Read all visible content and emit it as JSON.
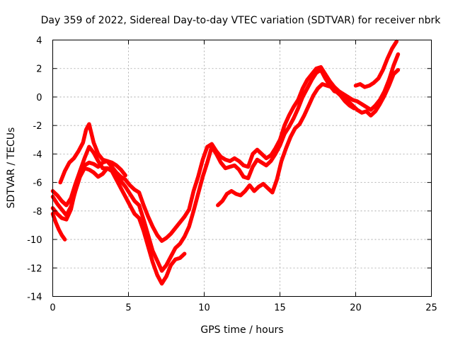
{
  "chart_data": {
    "type": "scatter",
    "title": "Day 359 of 2022, Sidereal Day-to-day VTEC variation (SDTVAR) for receiver nbrk",
    "xlabel": "GPS time / hours",
    "ylabel": "SDTVAR / TECUs",
    "xlim": [
      0,
      25
    ],
    "ylim": [
      -14,
      4
    ],
    "xticks": [
      0,
      5,
      10,
      15,
      20,
      25
    ],
    "yticks": [
      -14,
      -12,
      -10,
      -8,
      -6,
      -4,
      -2,
      0,
      2,
      4
    ],
    "grid": true,
    "legend": "none",
    "marker_color": "#ff0000",
    "series": [
      {
        "x": [
          0.0,
          0.3,
          0.6,
          0.9,
          1.2,
          1.5,
          1.8,
          2.1,
          2.4,
          2.7,
          3.0,
          3.3,
          3.6,
          3.9,
          4.2,
          4.5,
          4.8,
          5.1,
          5.4,
          5.7,
          6.0,
          6.3,
          6.6,
          6.9,
          7.2,
          7.5,
          7.8,
          8.1,
          8.4,
          8.7,
          9.0,
          9.3,
          9.6,
          9.9,
          10.2,
          10.5,
          10.8,
          11.1,
          11.4,
          11.7,
          12.0,
          12.3,
          12.6,
          12.9,
          13.2,
          13.5,
          13.8,
          14.1,
          14.4,
          14.7,
          15.0,
          15.3,
          15.6,
          15.9,
          16.2,
          16.5,
          16.8,
          17.1,
          17.4,
          17.7,
          18.0,
          18.3,
          18.6,
          18.9,
          19.2,
          19.5,
          19.8,
          20.1,
          20.4,
          20.7,
          21.0,
          21.3,
          21.6,
          21.9,
          22.2,
          22.5,
          22.8
        ],
        "y": [
          -6.6,
          -6.9,
          -7.3,
          -7.6,
          -7.1,
          -6.1,
          -5.2,
          -4.8,
          -4.6,
          -4.7,
          -4.9,
          -4.6,
          -4.5,
          -4.9,
          -5.3,
          -5.6,
          -5.8,
          -6.2,
          -6.5,
          -6.7,
          -7.6,
          -8.4,
          -9.1,
          -9.7,
          -10.1,
          -9.9,
          -9.6,
          -9.2,
          -8.8,
          -8.4,
          -7.9,
          -6.6,
          -5.6,
          -4.4,
          -3.5,
          -3.3,
          -3.8,
          -4.2,
          -4.4,
          -4.5,
          -4.3,
          -4.5,
          -4.8,
          -4.9,
          -4.0,
          -3.7,
          -4.0,
          -4.3,
          -4.1,
          -3.6,
          -3.0,
          -2.0,
          -1.3,
          -0.7,
          -0.2,
          0.6,
          1.2,
          1.6,
          2.0,
          2.1,
          1.6,
          1.1,
          0.7,
          0.4,
          0.2,
          0.0,
          -0.2,
          -0.3,
          -0.5,
          -0.7,
          -0.9,
          -0.6,
          -0.2,
          0.4,
          1.2,
          2.2,
          3.0
        ]
      },
      {
        "x": [
          0.0,
          0.3,
          0.6,
          0.9,
          1.2,
          1.5,
          1.8,
          2.1,
          2.4,
          2.7,
          3.0,
          3.3,
          3.6,
          3.9,
          4.2,
          4.5,
          4.8,
          5.1,
          5.4,
          5.7,
          6.0,
          6.3,
          6.6,
          6.9,
          7.2,
          7.5,
          7.8,
          8.1,
          8.4,
          8.7,
          9.0,
          9.3,
          9.6,
          9.9,
          10.2,
          10.5,
          10.8,
          11.1,
          11.4,
          11.7,
          12.0,
          12.3,
          12.6,
          12.9,
          13.2,
          13.5,
          13.8,
          14.1,
          14.4,
          14.7,
          15.0,
          15.3,
          15.6,
          15.9,
          16.2,
          16.5,
          16.8,
          17.1,
          17.4,
          17.7,
          18.0,
          18.3,
          18.6,
          18.9,
          19.2,
          19.5,
          19.8,
          20.1,
          20.4,
          20.7,
          21.0,
          21.3,
          21.6,
          21.9,
          22.2,
          22.5,
          22.8
        ],
        "y": [
          -7.0,
          -7.5,
          -7.9,
          -8.3,
          -7.7,
          -6.6,
          -5.6,
          -5.0,
          -5.1,
          -5.3,
          -5.6,
          -5.4,
          -5.0,
          -5.1,
          -5.5,
          -5.9,
          -6.3,
          -6.8,
          -7.3,
          -7.6,
          -8.6,
          -9.7,
          -10.8,
          -11.5,
          -12.2,
          -11.8,
          -11.2,
          -10.6,
          -10.3,
          -9.8,
          -9.1,
          -8.0,
          -6.8,
          -5.6,
          -4.6,
          -3.5,
          -4.0,
          -4.6,
          -5.0,
          -4.9,
          -4.8,
          -5.1,
          -5.6,
          -5.7,
          -4.9,
          -4.4,
          -4.6,
          -4.8,
          -4.5,
          -4.0,
          -3.4,
          -2.6,
          -2.1,
          -1.5,
          -0.8,
          0.0,
          0.6,
          1.2,
          1.7,
          1.9,
          1.3,
          0.8,
          0.4,
          0.3,
          0.1,
          -0.3,
          -0.6,
          -0.9,
          -1.1,
          -1.0,
          -1.3,
          -1.0,
          -0.5,
          0.1,
          0.8,
          1.6,
          1.9
        ]
      },
      {
        "x": [
          0.0,
          0.3,
          0.6,
          0.9,
          1.2,
          1.5,
          1.8,
          2.1,
          2.4,
          2.7,
          3.0,
          3.3,
          3.6,
          3.9,
          4.2,
          4.5,
          4.8,
          5.1,
          5.4,
          5.7,
          6.0,
          6.3,
          6.6,
          6.9,
          7.2,
          7.5,
          7.8,
          8.1,
          8.4,
          8.7
        ],
        "y": [
          -7.8,
          -8.2,
          -8.5,
          -8.6,
          -7.9,
          -6.5,
          -5.2,
          -4.3,
          -3.5,
          -3.9,
          -4.5,
          -5.0,
          -5.0,
          -5.2,
          -5.8,
          -6.4,
          -7.0,
          -7.6,
          -8.2,
          -8.5,
          -9.4,
          -10.5,
          -11.6,
          -12.5,
          -13.1,
          -12.6,
          -11.8,
          -11.4,
          -11.3,
          -11.0
        ]
      },
      {
        "x": [
          0.0,
          0.2,
          0.4,
          0.6,
          0.8
        ],
        "y": [
          -8.2,
          -8.8,
          -9.3,
          -9.7,
          -10.0
        ]
      },
      {
        "x": [
          0.5,
          0.8,
          1.1,
          1.4,
          1.7,
          2.0,
          2.2,
          2.4,
          2.7,
          3.0,
          3.3,
          3.6,
          3.9,
          4.2,
          4.5,
          4.8
        ],
        "y": [
          -6.0,
          -5.2,
          -4.6,
          -4.3,
          -3.8,
          -3.2,
          -2.3,
          -1.9,
          -3.2,
          -4.0,
          -4.4,
          -4.5,
          -4.6,
          -4.8,
          -5.1,
          -5.5
        ]
      },
      {
        "x": [
          10.9,
          11.2,
          11.5,
          11.8,
          12.1,
          12.4,
          12.7,
          13.0,
          13.3,
          13.6,
          13.9,
          14.2,
          14.5,
          14.8,
          15.1,
          15.4,
          15.7,
          16.0,
          16.3,
          16.6,
          16.9,
          17.2,
          17.5,
          17.8,
          18.1,
          18.4,
          18.7,
          19.0,
          19.3,
          19.6,
          19.9
        ],
        "y": [
          -7.6,
          -7.3,
          -6.8,
          -6.6,
          -6.8,
          -6.9,
          -6.6,
          -6.2,
          -6.6,
          -6.3,
          -6.1,
          -6.4,
          -6.7,
          -5.8,
          -4.5,
          -3.6,
          -2.8,
          -2.2,
          -1.9,
          -1.3,
          -0.6,
          0.1,
          0.6,
          0.9,
          0.8,
          0.7,
          0.4,
          0.1,
          -0.3,
          -0.6,
          -0.8
        ]
      },
      {
        "x": [
          20.0,
          20.3,
          20.6,
          20.9,
          21.2,
          21.5,
          21.8,
          22.1,
          22.4,
          22.7
        ],
        "y": [
          0.8,
          0.9,
          0.7,
          0.8,
          1.0,
          1.3,
          1.9,
          2.7,
          3.4,
          3.9
        ]
      }
    ]
  }
}
